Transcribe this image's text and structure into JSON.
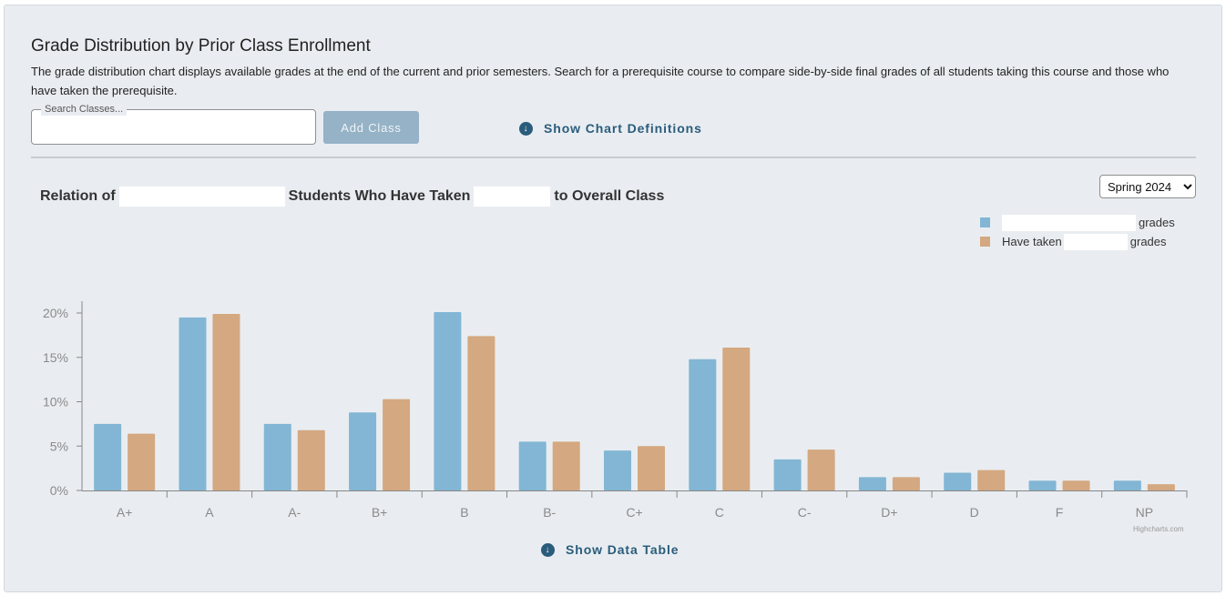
{
  "header": {
    "title": "Grade Distribution by Prior Class Enrollment",
    "description": "The grade distribution chart displays available grades at the end of the current and prior semesters. Search for a prerequisite course to compare side-by-side final grades of all students taking this course and those who have taken the prerequisite."
  },
  "search": {
    "legend": "Search Classes...",
    "value": "",
    "add_label": "Add Class"
  },
  "links": {
    "show_definitions": "Show Chart Definitions",
    "show_table": "Show Data Table",
    "icon": "arrow-circle-down-icon"
  },
  "chart_header": {
    "relation_of": "Relation of",
    "students_taken": "Students Who Have Taken",
    "to_overall": "to Overall Class"
  },
  "semester": {
    "selected": "Spring 2024"
  },
  "legend": {
    "series1_suffix": "grades",
    "series2_prefix": "Have taken",
    "series2_suffix": "grades"
  },
  "credits": "Highcharts.com",
  "colors": {
    "series1": "#82b6d4",
    "series2": "#d4a880",
    "accent": "#2a5c7b",
    "button": "#95b2c6"
  },
  "chart_data": {
    "type": "bar",
    "categories": [
      "A+",
      "A",
      "A-",
      "B+",
      "B",
      "B-",
      "C+",
      "C",
      "C-",
      "D+",
      "D",
      "F",
      "NP"
    ],
    "series": [
      {
        "values": [
          7.5,
          19.5,
          7.5,
          8.8,
          20.1,
          5.5,
          4.5,
          14.8,
          3.5,
          1.5,
          2.0,
          1.1,
          1.1
        ]
      },
      {
        "values": [
          6.4,
          19.9,
          6.8,
          10.3,
          17.4,
          5.5,
          5.0,
          16.1,
          4.6,
          1.5,
          2.3,
          1.1,
          0.7
        ]
      }
    ],
    "yticks": [
      "0%",
      "5%",
      "10%",
      "15%",
      "20%"
    ],
    "ylim": [
      0,
      20
    ],
    "legend_position": "top-right",
    "grid": false
  }
}
